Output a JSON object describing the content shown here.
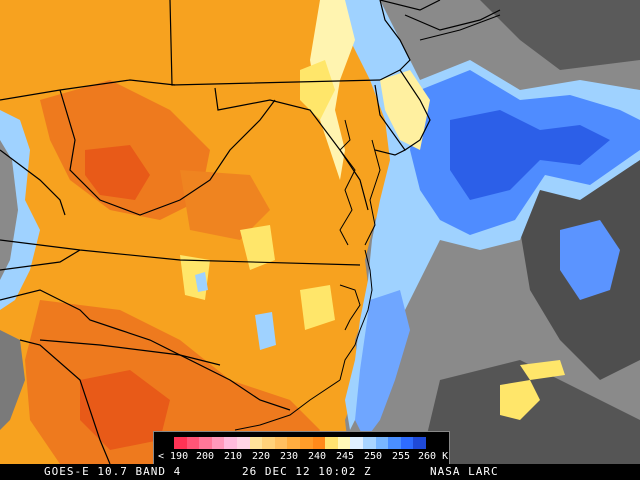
{
  "caption": {
    "satellite": "GOES-E 10.7 BAND 4",
    "datetime": "26 DEC 12 10:02 Z",
    "credit": "NASA LARC"
  },
  "colorbar": {
    "labels": [
      "< 190",
      "200",
      "210",
      "220",
      "230",
      "240",
      "245",
      "250",
      "255",
      "260 K"
    ],
    "colors": [
      "#ff3355",
      "#ff5577",
      "#ff7799",
      "#ff99bb",
      "#ffbbdd",
      "#ffd4e4",
      "#ffe39a",
      "#ffd27a",
      "#ffc060",
      "#ffae40",
      "#ff9d2a",
      "#ff8a1a",
      "#ffe370",
      "#fff8b8",
      "#e0f0ff",
      "#a8d4ff",
      "#78b6ff",
      "#4a8fff",
      "#2e6cff",
      "#1f4ad8"
    ]
  },
  "palette": {
    "orange": "#f7a21f",
    "dark_orange": "#ee7a1e",
    "deep_orange": "#e85a18",
    "yellow": "#ffe66a",
    "pale_yellow": "#fff4b0",
    "light_blue": "#9fd2ff",
    "blue": "#4f8cff",
    "deep_blue": "#2c5fe8",
    "gray": "#8a8a8a",
    "dark_gray": "#4e4e4e",
    "border": "#000000"
  }
}
